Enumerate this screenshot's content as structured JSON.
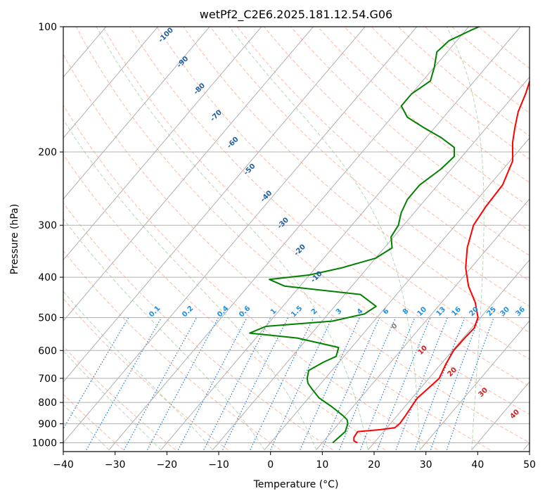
{
  "chart_data": {
    "type": "line",
    "title": "wetPf2_C2E6.2025.181.12.54.G06",
    "xlabel": "Temperature (°C)",
    "ylabel": "Pressure (hPa)",
    "xlim": [
      -40,
      50
    ],
    "ylim": [
      1040,
      100
    ],
    "y_scale": "log",
    "grid": true,
    "skew": "skew-T log-P diagram",
    "x_ticks": [
      "−40",
      "−30",
      "−20",
      "−10",
      "0",
      "10",
      "20",
      "30",
      "40",
      "50"
    ],
    "y_ticks": [
      "100",
      "200",
      "300",
      "400",
      "500",
      "600",
      "700",
      "800",
      "900",
      "1000"
    ],
    "series": [
      {
        "color": "#ff0000",
        "note": "temperature profile",
        "points": [
          [
            16.8,
            1000
          ],
          [
            15.8,
            990
          ],
          [
            15.2,
            970
          ],
          [
            15.0,
            940
          ],
          [
            19.0,
            930
          ],
          [
            21.5,
            920
          ],
          [
            21.8,
            900
          ],
          [
            21.6,
            860
          ],
          [
            21.3,
            820
          ],
          [
            21.0,
            780
          ],
          [
            21.5,
            740
          ],
          [
            22.0,
            700
          ],
          [
            21.0,
            650
          ],
          [
            20.2,
            600
          ],
          [
            20.3,
            560
          ],
          [
            20.5,
            530
          ],
          [
            19.5,
            500
          ],
          [
            16.5,
            460
          ],
          [
            12.5,
            420
          ],
          [
            9.0,
            380
          ],
          [
            6.0,
            340
          ],
          [
            3.5,
            300
          ],
          [
            2.8,
            270
          ],
          [
            2.5,
            240
          ],
          [
            0.5,
            210
          ],
          [
            -2.5,
            190
          ],
          [
            -4.5,
            175
          ],
          [
            -6.5,
            160
          ],
          [
            -8.0,
            145
          ],
          [
            -10.0,
            130
          ],
          [
            -11.0,
            120
          ],
          [
            -11.8,
            110
          ],
          [
            -13.5,
            100
          ]
        ]
      },
      {
        "color": "#008000",
        "note": "dewpoint profile",
        "points": [
          [
            12.0,
            1000
          ],
          [
            12.2,
            980
          ],
          [
            12.4,
            960
          ],
          [
            12.6,
            940
          ],
          [
            12.2,
            920
          ],
          [
            11.8,
            900
          ],
          [
            11.0,
            880
          ],
          [
            9.5,
            860
          ],
          [
            6.0,
            820
          ],
          [
            2.0,
            780
          ],
          [
            -1.0,
            740
          ],
          [
            -2.5,
            720
          ],
          [
            -3.5,
            700
          ],
          [
            -4.5,
            670
          ],
          [
            -3.0,
            640
          ],
          [
            -1.5,
            620
          ],
          [
            -2.5,
            590
          ],
          [
            -12.0,
            560
          ],
          [
            -22.0,
            545
          ],
          [
            -20.0,
            525
          ],
          [
            -8.0,
            510
          ],
          [
            -3.0,
            490
          ],
          [
            -2.0,
            470
          ],
          [
            -7.0,
            440
          ],
          [
            -23.0,
            420
          ],
          [
            -27.0,
            405
          ],
          [
            -20.0,
            395
          ],
          [
            -15.0,
            380
          ],
          [
            -10.0,
            360
          ],
          [
            -8.5,
            340
          ],
          [
            -10.5,
            320
          ],
          [
            -11.0,
            300
          ],
          [
            -12.5,
            280
          ],
          [
            -13.5,
            260
          ],
          [
            -13.5,
            240
          ],
          [
            -12.0,
            220
          ],
          [
            -11.5,
            205
          ],
          [
            -13.0,
            195
          ],
          [
            -17.0,
            185
          ],
          [
            -22.0,
            175
          ],
          [
            -27.0,
            165
          ],
          [
            -30.0,
            155
          ],
          [
            -30.0,
            145
          ],
          [
            -28.5,
            135
          ],
          [
            -30.0,
            125
          ],
          [
            -32.0,
            115
          ],
          [
            -31.5,
            108
          ],
          [
            -29.0,
            102
          ],
          [
            -28.0,
            100
          ]
        ]
      }
    ],
    "mixing_ratio_labels": [
      "0.1",
      "0.2",
      "0.4",
      "0.6",
      "1",
      "1.5",
      "2",
      "3",
      "4",
      "6",
      "8",
      "10",
      "13",
      "16",
      "20",
      "25",
      "30",
      "36"
    ],
    "dry_adiabat_labels": [
      "-100",
      "-90",
      "-80",
      "-70",
      "-60",
      "-50",
      "-40",
      "-30",
      "-20",
      "-10"
    ],
    "moist_adiabat_labels": [
      "0",
      "10",
      "20",
      "30",
      "40"
    ],
    "colors": {
      "temperature": "#ff0000",
      "dewpoint": "#008000",
      "isotherm": "#b0b0b0",
      "isobar": "#b0b0b0",
      "dry_adiabat": "#ff9b7a",
      "moist_adiabat": "#7fbf7f",
      "mixing_ratio": "#1f77d4",
      "dry_label": "#1f5f9f",
      "mixing_label": "#1f8fdf",
      "moist_label": "#cc2222",
      "moist_zero_label": "#808080"
    }
  }
}
